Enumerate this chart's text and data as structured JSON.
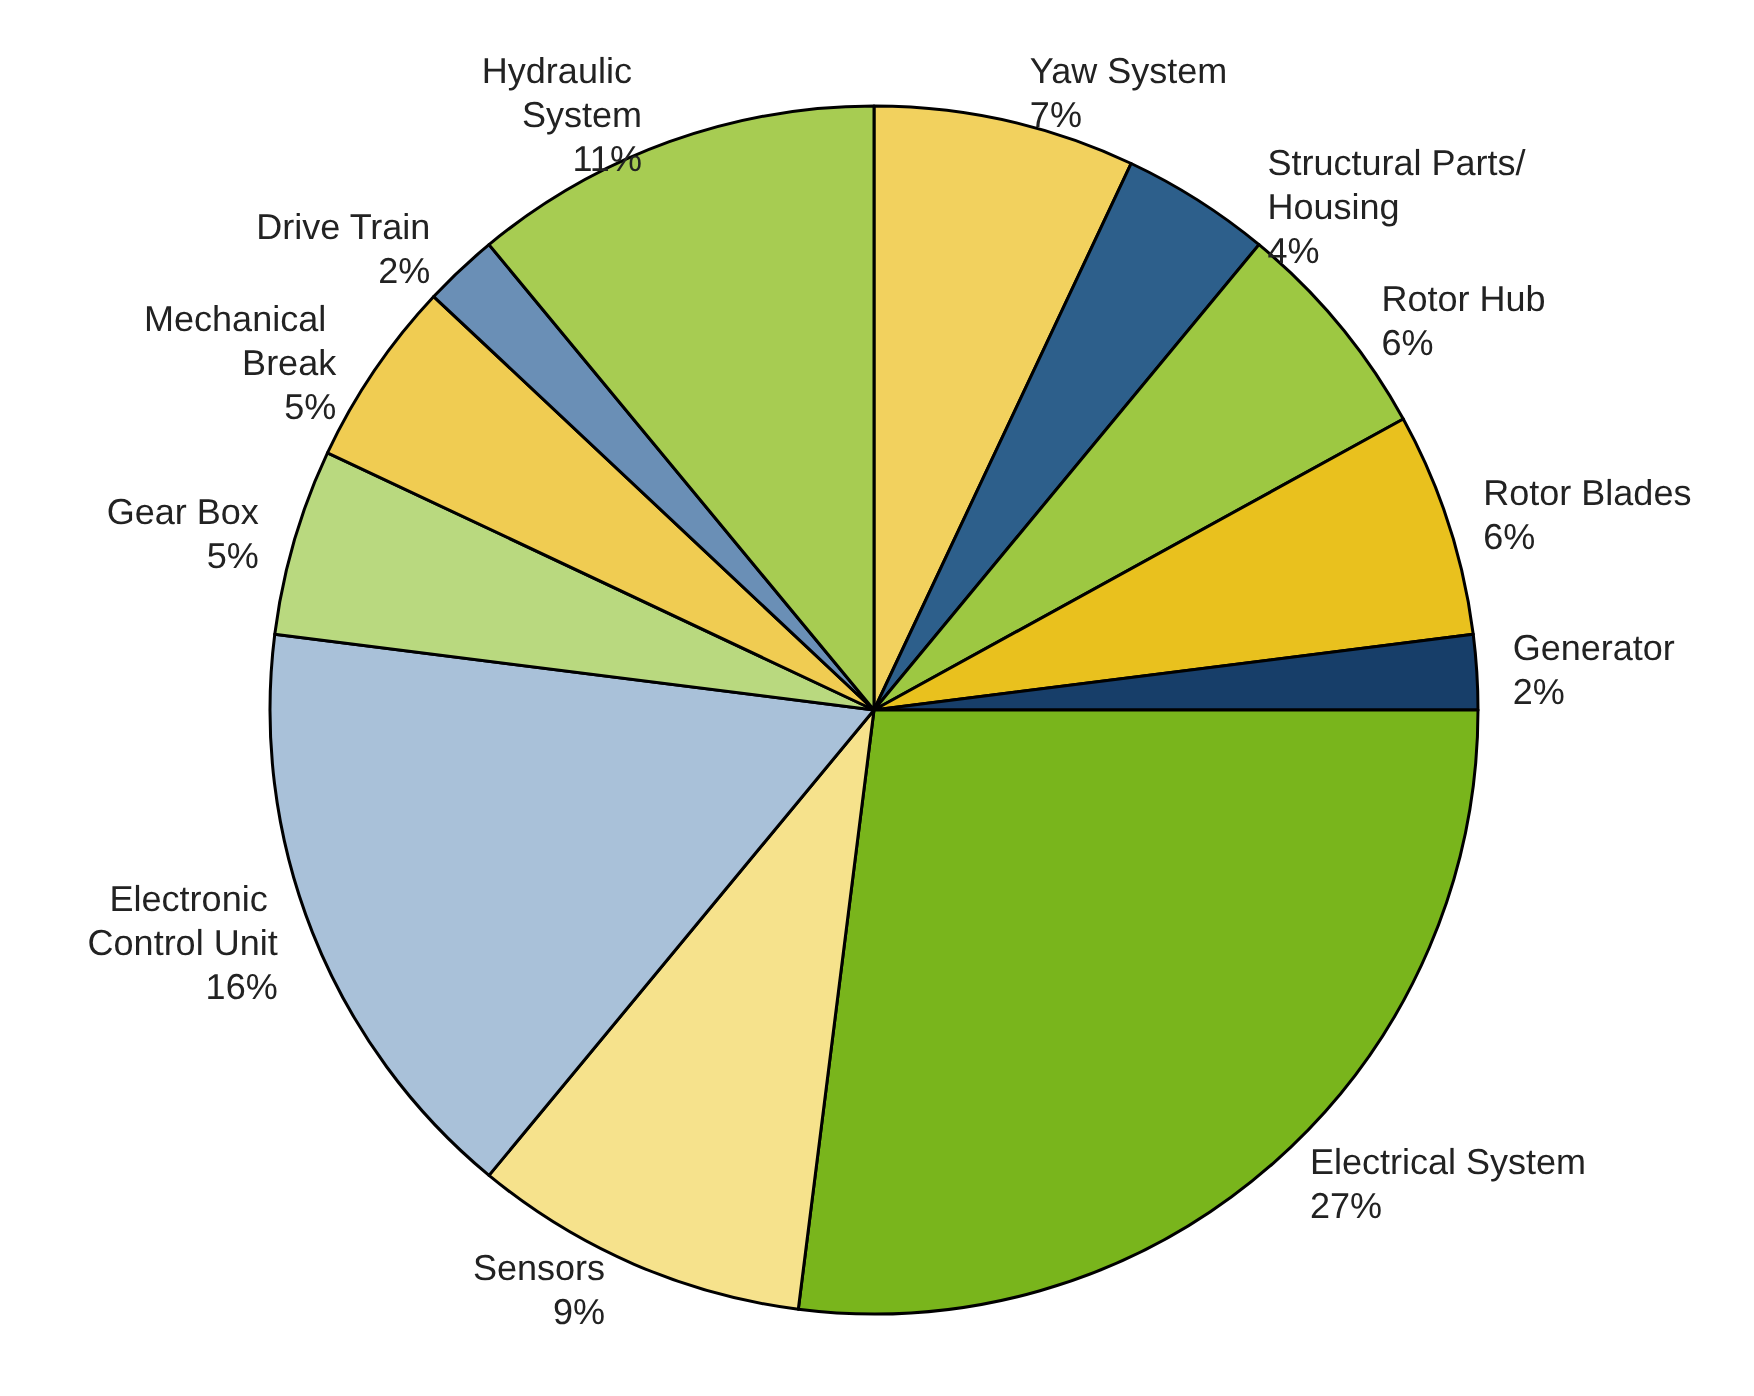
{
  "chart_data": {
    "type": "pie",
    "categories": [
      "Yaw System",
      "Structural Parts/Housing",
      "Rotor Hub",
      "Rotor Blades",
      "Generator",
      "Electrical System",
      "Sensors",
      "Electronic Control Unit",
      "Gear Box",
      "Mechanical Break",
      "Drive Train",
      "Hydraulic System"
    ],
    "values": [
      7,
      4,
      6,
      6,
      2,
      27,
      9,
      16,
      5,
      5,
      2,
      11
    ],
    "colors": [
      "#f2d15e",
      "#2d5f8b",
      "#9dc842",
      "#e9c11e",
      "#173e69",
      "#79b51c",
      "#f6e28c",
      "#a9c1d9",
      "#b9d97f",
      "#f0cc52",
      "#6a8fb6",
      "#a7cc52"
    ],
    "value_labels": [
      "7%",
      "4%",
      "6%",
      "6%",
      "2%",
      "27%",
      "9%",
      "16%",
      "5%",
      "5%",
      "2%",
      "11%"
    ],
    "legend": false
  }
}
